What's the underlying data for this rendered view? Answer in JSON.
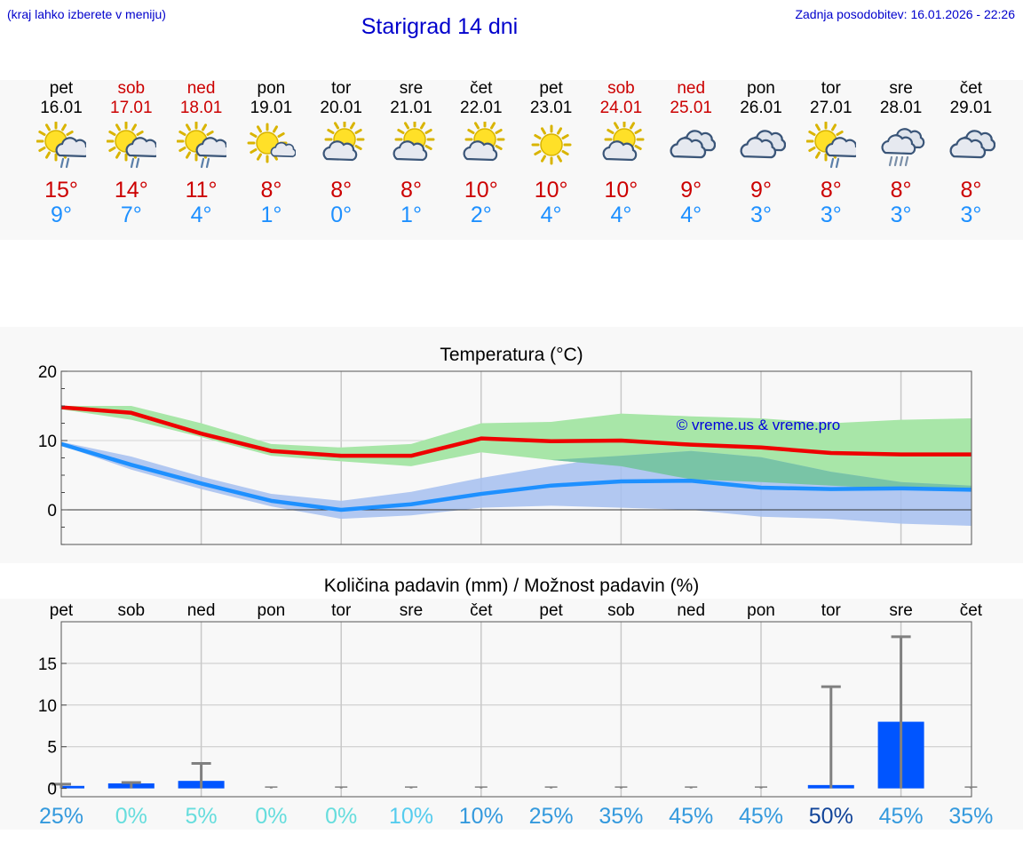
{
  "header": {
    "hint": "(kraj lahko izberete v meniju)",
    "title": "Starigrad 14 dni",
    "updated": "Zadnja posodobitev: 16.01.2026 - 22:26"
  },
  "days": [
    {
      "name": "pet",
      "date": "16.01",
      "weekend": false,
      "icon": "sun-cloud-rain-icon",
      "max": "15°",
      "min": "9°"
    },
    {
      "name": "sob",
      "date": "17.01",
      "weekend": true,
      "icon": "sun-cloud-rain-icon",
      "max": "14°",
      "min": "7°"
    },
    {
      "name": "ned",
      "date": "18.01",
      "weekend": true,
      "icon": "sun-cloud-rain-icon",
      "max": "11°",
      "min": "4°"
    },
    {
      "name": "pon",
      "date": "19.01",
      "weekend": false,
      "icon": "sun-small-cloud-icon",
      "max": "8°",
      "min": "1°"
    },
    {
      "name": "tor",
      "date": "20.01",
      "weekend": false,
      "icon": "sun-behind-cloud-icon",
      "max": "8°",
      "min": "0°"
    },
    {
      "name": "sre",
      "date": "21.01",
      "weekend": false,
      "icon": "sun-behind-cloud-icon",
      "max": "8°",
      "min": "1°"
    },
    {
      "name": "čet",
      "date": "22.01",
      "weekend": false,
      "icon": "sun-behind-cloud-icon",
      "max": "10°",
      "min": "2°"
    },
    {
      "name": "pet",
      "date": "23.01",
      "weekend": false,
      "icon": "sun-icon",
      "max": "10°",
      "min": "4°"
    },
    {
      "name": "sob",
      "date": "24.01",
      "weekend": true,
      "icon": "sun-behind-cloud-icon",
      "max": "10°",
      "min": "4°"
    },
    {
      "name": "ned",
      "date": "25.01",
      "weekend": true,
      "icon": "cloudy-icon",
      "max": "9°",
      "min": "4°"
    },
    {
      "name": "pon",
      "date": "26.01",
      "weekend": false,
      "icon": "cloudy-icon",
      "max": "9°",
      "min": "3°"
    },
    {
      "name": "tor",
      "date": "27.01",
      "weekend": false,
      "icon": "sun-cloud-rain-icon",
      "max": "8°",
      "min": "3°"
    },
    {
      "name": "sre",
      "date": "28.01",
      "weekend": false,
      "icon": "cloud-heavy-rain-icon",
      "max": "8°",
      "min": "3°"
    },
    {
      "name": "čet",
      "date": "29.01",
      "weekend": false,
      "icon": "cloudy-icon",
      "max": "8°",
      "min": "3°"
    }
  ],
  "colors": {
    "max_line": "#ee0000",
    "min_line": "#1e90ff",
    "max_band": "#a8e6a8",
    "min_band": "#a6bff0",
    "overlap_band": "#79c4a6",
    "bar": "#0055ff",
    "whisker": "#808080"
  },
  "chart_data": [
    {
      "type": "line",
      "title": "Temperatura (°C)",
      "watermark": "© vreme.us & vreme.pro",
      "ylim": [
        -5,
        20
      ],
      "yticks": [
        "20",
        "10",
        "0"
      ],
      "x": [
        "16.01",
        "17.01",
        "18.01",
        "19.01",
        "20.01",
        "21.01",
        "22.01",
        "23.01",
        "24.01",
        "25.01",
        "26.01",
        "27.01",
        "28.01",
        "29.01"
      ],
      "series": [
        {
          "name": "max",
          "values": [
            14.8,
            14.0,
            11.0,
            8.5,
            7.8,
            7.8,
            10.3,
            9.9,
            10.0,
            9.4,
            9.0,
            8.2,
            8.0,
            8.0
          ],
          "band_low": [
            14.5,
            13.0,
            10.5,
            7.8,
            7.0,
            6.3,
            8.3,
            7.2,
            6.3,
            4.4,
            4.0,
            3.5,
            3.0,
            3.0
          ],
          "band_high": [
            15.0,
            15.0,
            12.5,
            9.5,
            9.0,
            9.5,
            12.5,
            12.7,
            13.9,
            13.5,
            13.2,
            12.5,
            13.0,
            13.2
          ]
        },
        {
          "name": "min",
          "values": [
            9.5,
            6.5,
            3.8,
            1.3,
            0.0,
            0.8,
            2.3,
            3.5,
            4.1,
            4.2,
            3.2,
            3.0,
            3.1,
            2.9
          ],
          "band_low": [
            9.3,
            5.8,
            3.0,
            0.5,
            -1.3,
            -0.8,
            0.3,
            0.6,
            0.3,
            0.0,
            -1.0,
            -1.3,
            -2.0,
            -2.3
          ],
          "band_high": [
            9.8,
            7.7,
            4.8,
            2.3,
            1.3,
            2.6,
            4.6,
            6.3,
            7.8,
            8.5,
            7.6,
            5.5,
            4.0,
            3.5
          ]
        }
      ]
    },
    {
      "type": "bar",
      "title": "Količina padavin (mm) / Možnost padavin (%)",
      "ylim": [
        -1,
        20
      ],
      "yticks": [
        "15",
        "10",
        "5",
        "0"
      ],
      "categories": [
        "pet",
        "sob",
        "ned",
        "pon",
        "tor",
        "sre",
        "čet",
        "pet",
        "sob",
        "ned",
        "pon",
        "tor",
        "sre",
        "čet"
      ],
      "values": [
        0.3,
        0.6,
        0.9,
        0,
        0,
        0,
        0,
        0,
        0,
        0,
        0,
        0.4,
        8.0,
        0
      ],
      "whisker_high": [
        0.5,
        0.7,
        3.0,
        0,
        0,
        0,
        0,
        0,
        0,
        0,
        0,
        12.2,
        18.2,
        0
      ],
      "probability": [
        "25%",
        "0%",
        "5%",
        "0%",
        "0%",
        "10%",
        "10%",
        "25%",
        "35%",
        "45%",
        "45%",
        "50%",
        "45%",
        "35%"
      ],
      "probability_colors": [
        "#3399dd",
        "#66dddd",
        "#66dddd",
        "#66dddd",
        "#66dddd",
        "#55ccee",
        "#3399dd",
        "#3399dd",
        "#3399dd",
        "#3399dd",
        "#3399dd",
        "#114499",
        "#3399dd",
        "#3399dd"
      ]
    }
  ]
}
